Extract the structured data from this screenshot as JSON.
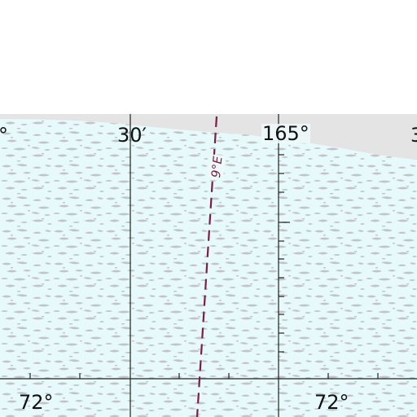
{
  "map": {
    "colors": {
      "water": "#ffffff",
      "ice": "#e6f9fb",
      "ice_pattern": "#c4c4c8",
      "shelf_gray": "#e4e4e4",
      "grid": "#222222",
      "declination": "#7a1f45"
    },
    "labels": {
      "lon_left_fragment": "°",
      "lon_30min": "30′",
      "lon_165": "165°",
      "lon_right_fragment": "3",
      "lat_left": "72°",
      "lat_right": "72°"
    },
    "declination_label": "9°E",
    "declination_line_style": "dashed"
  }
}
